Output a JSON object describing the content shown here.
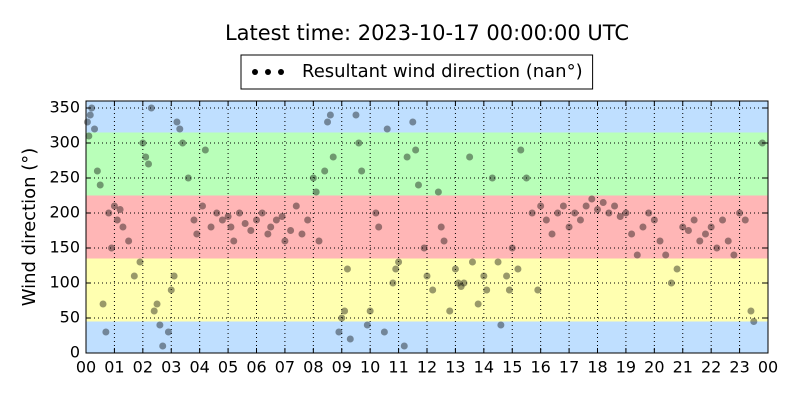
{
  "chart_data": {
    "type": "scatter",
    "title": "Latest time: 2023-10-17 00:00:00 UTC",
    "y_label": "Wind direction (°)",
    "legend": "top",
    "grid": true,
    "xlim": [
      0,
      24
    ],
    "ylim": [
      0,
      360
    ],
    "xticks": [
      {
        "value": 0,
        "label": "00"
      },
      {
        "value": 1,
        "label": "01"
      },
      {
        "value": 2,
        "label": "02"
      },
      {
        "value": 3,
        "label": "03"
      },
      {
        "value": 4,
        "label": "04"
      },
      {
        "value": 5,
        "label": "05"
      },
      {
        "value": 6,
        "label": "06"
      },
      {
        "value": 7,
        "label": "07"
      },
      {
        "value": 8,
        "label": "08"
      },
      {
        "value": 9,
        "label": "09"
      },
      {
        "value": 10,
        "label": "10"
      },
      {
        "value": 11,
        "label": "11"
      },
      {
        "value": 12,
        "label": "12"
      },
      {
        "value": 13,
        "label": "13"
      },
      {
        "value": 14,
        "label": "14"
      },
      {
        "value": 15,
        "label": "15"
      },
      {
        "value": 16,
        "label": "16"
      },
      {
        "value": 17,
        "label": "17"
      },
      {
        "value": 18,
        "label": "18"
      },
      {
        "value": 19,
        "label": "19"
      },
      {
        "value": 20,
        "label": "20"
      },
      {
        "value": 21,
        "label": "21"
      },
      {
        "value": 22,
        "label": "22"
      },
      {
        "value": 23,
        "label": "23"
      },
      {
        "value": 24,
        "label": "00"
      }
    ],
    "yticks": [
      0,
      50,
      100,
      150,
      200,
      250,
      300,
      350
    ],
    "bands": [
      {
        "from": 0,
        "to": 45,
        "color": "#bfdfff"
      },
      {
        "from": 45,
        "to": 135,
        "color": "#ffffb0"
      },
      {
        "from": 135,
        "to": 225,
        "color": "#ffb6b6"
      },
      {
        "from": 225,
        "to": 315,
        "color": "#b9ffb9"
      },
      {
        "from": 315,
        "to": 360,
        "color": "#bfdfff"
      }
    ],
    "x": [
      0.05,
      0.1,
      0.15,
      0.2,
      0.3,
      0.4,
      0.5,
      0.6,
      0.7,
      0.8,
      0.9,
      1.0,
      1.1,
      1.2,
      1.3,
      1.5,
      1.7,
      1.9,
      2.0,
      2.1,
      2.2,
      2.3,
      2.4,
      2.5,
      2.6,
      2.7,
      2.9,
      3.0,
      3.1,
      3.2,
      3.3,
      3.4,
      3.6,
      3.8,
      3.9,
      4.1,
      4.2,
      4.4,
      4.6,
      4.8,
      5.0,
      5.1,
      5.2,
      5.4,
      5.6,
      5.8,
      6.0,
      6.2,
      6.4,
      6.5,
      6.7,
      6.9,
      7.0,
      7.2,
      7.4,
      7.6,
      7.8,
      8.0,
      8.1,
      8.2,
      8.4,
      8.5,
      8.6,
      8.7,
      8.9,
      9.0,
      9.1,
      9.2,
      9.3,
      9.5,
      9.6,
      9.7,
      9.9,
      10.0,
      10.2,
      10.3,
      10.5,
      10.6,
      10.8,
      10.9,
      11.0,
      11.2,
      11.3,
      11.5,
      11.6,
      11.7,
      11.9,
      12.0,
      12.2,
      12.4,
      12.5,
      12.6,
      12.8,
      13.0,
      13.1,
      13.2,
      13.3,
      13.5,
      13.6,
      13.8,
      14.0,
      14.1,
      14.3,
      14.5,
      14.6,
      14.8,
      14.9,
      15.0,
      15.2,
      15.3,
      15.5,
      15.7,
      15.9,
      16.0,
      16.2,
      16.4,
      16.6,
      16.8,
      17.0,
      17.2,
      17.4,
      17.6,
      17.8,
      18.0,
      18.2,
      18.4,
      18.6,
      18.8,
      19.0,
      19.2,
      19.4,
      19.6,
      19.8,
      20.0,
      20.2,
      20.4,
      20.6,
      20.8,
      21.0,
      21.2,
      21.4,
      21.6,
      21.8,
      22.0,
      22.2,
      22.4,
      22.6,
      22.8,
      23.0,
      23.2,
      23.4,
      23.5,
      23.8
    ],
    "series": [
      {
        "name": "Resultant wind direction (nan°)",
        "color": "#000000",
        "values": [
          330,
          310,
          340,
          350,
          320,
          260,
          240,
          70,
          30,
          200,
          150,
          210,
          190,
          205,
          180,
          160,
          110,
          130,
          300,
          280,
          270,
          350,
          60,
          70,
          40,
          10,
          30,
          90,
          110,
          330,
          320,
          300,
          250,
          190,
          170,
          210,
          290,
          180,
          200,
          190,
          195,
          180,
          160,
          200,
          185,
          175,
          190,
          200,
          170,
          180,
          190,
          195,
          160,
          175,
          210,
          170,
          190,
          250,
          230,
          160,
          260,
          330,
          340,
          280,
          30,
          50,
          60,
          120,
          20,
          340,
          300,
          260,
          40,
          60,
          200,
          180,
          30,
          320,
          100,
          120,
          130,
          10,
          280,
          330,
          290,
          240,
          150,
          110,
          90,
          230,
          180,
          160,
          60,
          120,
          100,
          95,
          100,
          280,
          130,
          70,
          110,
          90,
          250,
          130,
          40,
          110,
          90,
          150,
          120,
          290,
          250,
          200,
          90,
          210,
          190,
          170,
          200,
          210,
          180,
          200,
          190,
          210,
          220,
          205,
          215,
          200,
          210,
          195,
          200,
          170,
          140,
          180,
          200,
          190,
          160,
          140,
          100,
          120,
          180,
          175,
          190,
          160,
          170,
          180,
          150,
          190,
          160,
          140,
          200,
          190,
          60,
          45,
          300
        ]
      }
    ]
  }
}
